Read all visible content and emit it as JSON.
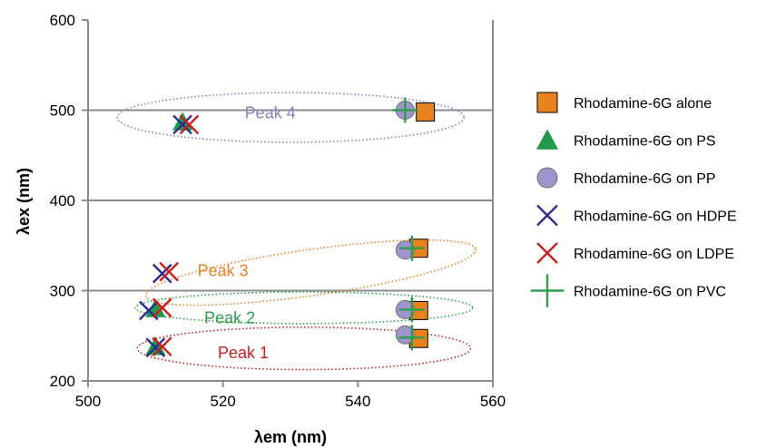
{
  "chart_data": {
    "type": "scatter",
    "xlabel": "λem (nm)",
    "ylabel": "λex (nm)",
    "xlim": [
      500,
      560
    ],
    "ylim": [
      200,
      600
    ],
    "xticks": [
      500,
      520,
      540,
      560
    ],
    "yticks": [
      200,
      300,
      400,
      500,
      600
    ],
    "grid": "horizontal lines at 300, 400, 500",
    "legend_position": "right",
    "series": [
      {
        "name": "Rhodamine-6G alone",
        "marker": "square",
        "color": "#E8821E",
        "points": [
          [
            550,
            498
          ],
          [
            549,
            347
          ],
          [
            549,
            278
          ],
          [
            549,
            247
          ]
        ]
      },
      {
        "name": "Rhodamine-6G on PS",
        "marker": "triangle",
        "color": "#1E9A4A",
        "points": [
          [
            514,
            487
          ],
          [
            510,
            280
          ],
          [
            510,
            238
          ]
        ]
      },
      {
        "name": "Rhodamine-6G on PP",
        "marker": "circle",
        "color": "#9E95CF",
        "points": [
          [
            547,
            500
          ],
          [
            547,
            345
          ],
          [
            547,
            279
          ],
          [
            547,
            251
          ]
        ]
      },
      {
        "name": "Rhodamine-6G on HDPE",
        "marker": "x",
        "color": "#2E2C8C",
        "points": [
          [
            514,
            484
          ],
          [
            511,
            319
          ],
          [
            509,
            278
          ],
          [
            510,
            237
          ]
        ]
      },
      {
        "name": "Rhodamine-6G on LDPE",
        "marker": "x",
        "color": "#CC1E1E",
        "points": [
          [
            515,
            484
          ],
          [
            512,
            321
          ],
          [
            511,
            281
          ],
          [
            511,
            238
          ]
        ]
      },
      {
        "name": "Rhodamine-6G on PVC",
        "marker": "plus",
        "color": "#2E9E4A",
        "points": [
          [
            547,
            500
          ],
          [
            548,
            347
          ],
          [
            548,
            279
          ],
          [
            548,
            248
          ]
        ]
      }
    ],
    "annotations": [
      {
        "text": "Peak 4",
        "color": "#8E7CC3",
        "x": 527,
        "y": 491,
        "ellipse": {
          "cx": 530,
          "cy": 492,
          "rx": 25.7,
          "ry": 27.5
        }
      },
      {
        "text": "Peak 3",
        "color": "#E8821E",
        "x": 520,
        "y": 316,
        "ellipse": {
          "cx": 533,
          "cy": 320,
          "rx": 24.7,
          "ry": 25.5,
          "rotate": -8
        }
      },
      {
        "text": "Peak 2",
        "color": "#2E9E4A",
        "x": 521,
        "y": 264,
        "ellipse": {
          "cx": 532,
          "cy": 281,
          "rx": 25.0,
          "ry": 17.5
        }
      },
      {
        "text": "Peak 1",
        "color": "#CC1E1E",
        "x": 523,
        "y": 225,
        "ellipse": {
          "cx": 532,
          "cy": 236,
          "rx": 24.7,
          "ry": 23.5
        }
      }
    ]
  }
}
